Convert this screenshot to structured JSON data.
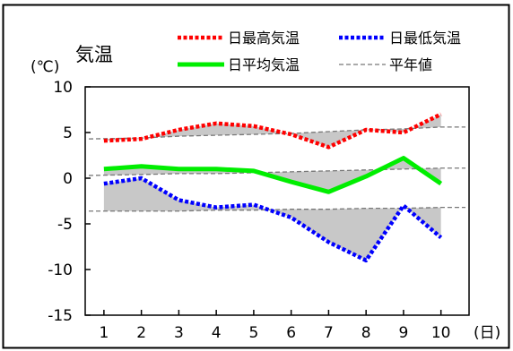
{
  "chart_data": {
    "type": "line",
    "title": "気温",
    "ylabel": "(℃)",
    "xlabel": "(日)",
    "x": [
      1,
      2,
      3,
      4,
      5,
      6,
      7,
      8,
      9,
      10
    ],
    "xticks": [
      "1",
      "2",
      "3",
      "4",
      "5",
      "6",
      "7",
      "8",
      "9",
      "10"
    ],
    "ylim": [
      -15,
      10
    ],
    "yticks": [
      "10",
      "5",
      "0",
      "-5",
      "-10",
      "-15"
    ],
    "grid": false,
    "legend_position": "top",
    "series": [
      {
        "name": "日最高気温",
        "values": [
          4.1,
          4.3,
          5.3,
          6.0,
          5.7,
          4.8,
          3.4,
          5.3,
          5.0,
          7.0
        ],
        "color": "#ff0000",
        "style": "dotted"
      },
      {
        "name": "日最低気温",
        "values": [
          -0.6,
          0.0,
          -2.4,
          -3.2,
          -2.9,
          -4.3,
          -7.0,
          -9.0,
          -3.0,
          -6.5
        ],
        "color": "#0000ff",
        "style": "dotted"
      },
      {
        "name": "日平均気温",
        "values": [
          1.0,
          1.3,
          1.0,
          1.0,
          0.8,
          -0.4,
          -1.5,
          0.2,
          2.2,
          -0.6
        ],
        "color": "#00ee00",
        "style": "solid"
      },
      {
        "name": "平年値",
        "style": "dashed",
        "color": "#777777",
        "normals": {
          "high": [
            4.3,
            4.4,
            4.6,
            4.7,
            4.8,
            4.9,
            5.1,
            5.3,
            5.4,
            5.6
          ],
          "mean": [
            0.3,
            0.4,
            0.5,
            0.5,
            0.6,
            0.7,
            0.8,
            0.9,
            1.0,
            1.1
          ],
          "low": [
            -3.6,
            -3.6,
            -3.6,
            -3.5,
            -3.5,
            -3.4,
            -3.4,
            -3.3,
            -3.3,
            -3.2
          ]
        }
      }
    ],
    "shading_color": "#c8c8c8"
  }
}
